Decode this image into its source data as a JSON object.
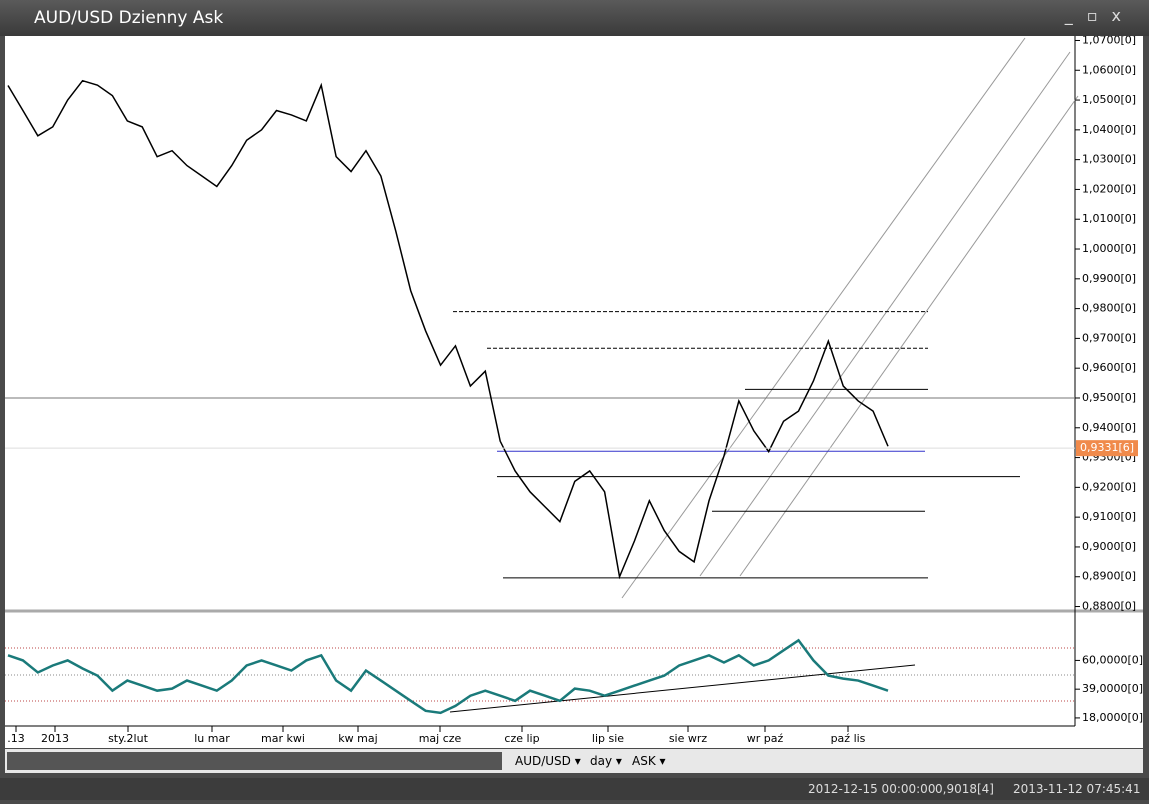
{
  "window": {
    "title": "AUD/USD Dzienny Ask"
  },
  "chart_data": [
    {
      "type": "line",
      "series": [
        {
          "color": "#000000",
          "values": [
            1.0549,
            1.0465,
            1.038,
            1.041,
            1.05,
            1.0565,
            1.055,
            1.0515,
            1.043,
            1.041,
            1.031,
            1.033,
            1.028,
            1.0245,
            1.021,
            1.028,
            1.0365,
            1.04,
            1.0465,
            1.045,
            1.043,
            1.055,
            1.031,
            1.026,
            1.033,
            1.0245,
            1.006,
            0.986,
            0.9725,
            0.961,
            0.9675,
            0.954,
            0.959,
            0.9355,
            0.9255,
            0.9185,
            0.9135,
            0.9085,
            0.922,
            0.9255,
            0.9185,
            0.89,
            0.902,
            0.9155,
            0.9055,
            0.8985,
            0.895,
            0.9155,
            0.9305,
            0.949,
            0.939,
            0.932,
            0.9422,
            0.9456,
            0.9557,
            0.9691,
            0.954,
            0.949,
            0.9456,
            0.9338
          ]
        }
      ],
      "ylim": [
        1.0715,
        0.8785
      ],
      "yticks": [
        {
          "value": 1.07,
          "label": "1,0700[0]"
        },
        {
          "value": 1.06,
          "label": "1,0600[0]"
        },
        {
          "value": 1.05,
          "label": "1,0500[0]"
        },
        {
          "value": 1.04,
          "label": "1,0400[0]"
        },
        {
          "value": 1.03,
          "label": "1,0300[0]"
        },
        {
          "value": 1.02,
          "label": "1,0200[0]"
        },
        {
          "value": 1.01,
          "label": "1,0100[0]"
        },
        {
          "value": 1.0,
          "label": "1,0000[0]"
        },
        {
          "value": 0.99,
          "label": "0,9900[0]"
        },
        {
          "value": 0.98,
          "label": "0,9800[0]"
        },
        {
          "value": 0.97,
          "label": "0,9700[0]"
        },
        {
          "value": 0.96,
          "label": "0,9600[0]"
        },
        {
          "value": 0.95,
          "label": "0,9500[0]"
        },
        {
          "value": 0.94,
          "label": "0,9400[0]"
        },
        {
          "value": 0.93,
          "label": "0,9300[0]"
        },
        {
          "value": 0.92,
          "label": "0,9200[0]"
        },
        {
          "value": 0.91,
          "label": "0,9100[0]"
        },
        {
          "value": 0.9,
          "label": "0,9000[0]"
        },
        {
          "value": 0.89,
          "label": "0,8900[0]"
        },
        {
          "value": 0.88,
          "label": "0,8800[0]"
        }
      ],
      "last_price": {
        "value": 0.93316,
        "label": "0,9331[6]"
      },
      "levels": [
        0.979,
        0.9667,
        0.9529,
        0.95,
        0.9321,
        0.9236,
        0.912,
        0.8896
      ],
      "x_labels": [
        ".13",
        "2013",
        "sty.2lut",
        "lu mar",
        "mar kwi",
        "kw maj",
        "maj cze",
        "cze lip",
        "lip sie",
        "sie wrz",
        "wr paź",
        "paź lis"
      ]
    },
    {
      "type": "line",
      "series": [
        {
          "color": "#1a7a7a",
          "values": [
            63.7,
            60,
            51.2,
            56.3,
            60,
            54.1,
            48.9,
            37.9,
            45.3,
            41.6,
            37.9,
            39.4,
            45.3,
            41.6,
            37.9,
            45.3,
            56.3,
            60,
            56.3,
            52.6,
            60,
            63.7,
            45.3,
            37.9,
            52.6,
            45.3,
            37.9,
            30.5,
            23.2,
            21.7,
            26.8,
            34.2,
            37.9,
            34.2,
            30.5,
            37.9,
            34.2,
            30.5,
            39.4,
            37.9,
            34.2,
            37.9,
            41.6,
            45.3,
            48.9,
            56.3,
            60,
            63.7,
            58.5,
            63.7,
            56.3,
            60,
            67.4,
            74.7,
            60,
            48.9,
            46.7,
            45.3,
            41.6,
            37.9
          ]
        }
      ],
      "ylim": [
        93.9,
        12.1
      ],
      "yticks": [
        {
          "value": 60,
          "label": "60,0000[0]"
        },
        {
          "value": 39,
          "label": "39,0000[0]"
        },
        {
          "value": 18,
          "label": "18,0000[0]"
        }
      ]
    }
  ],
  "toolbar": {
    "symbol": "AUD/USD ▾",
    "period": "day ▾",
    "price_type": "ASK ▾"
  },
  "status": {
    "from": "2012-12-15 00:00:00",
    "value": "0,9018[4]",
    "to": "2013-11-12 07:45:41"
  }
}
